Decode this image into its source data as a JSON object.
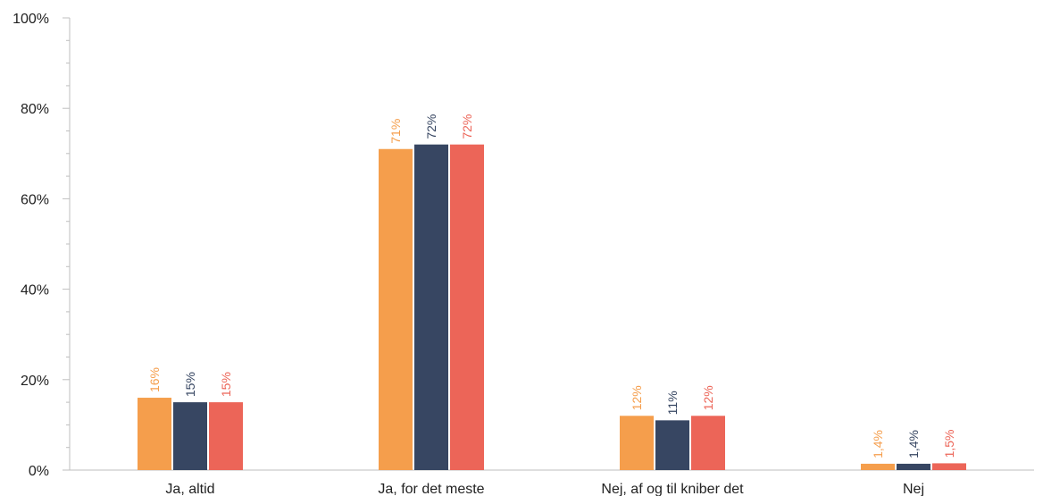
{
  "chart_data": {
    "type": "bar",
    "categories": [
      "Ja, altid",
      "Ja, for det meste",
      "Nej, af og til kniber det",
      "Nej"
    ],
    "series": [
      {
        "values": [
          16,
          71,
          12,
          1.4
        ],
        "labels": [
          "16%",
          "71%",
          "12%",
          "1,4%"
        ],
        "color": "#F59E4C"
      },
      {
        "values": [
          15,
          72,
          11,
          1.4
        ],
        "labels": [
          "15%",
          "72%",
          "11%",
          "1,4%"
        ],
        "color": "#374662"
      },
      {
        "values": [
          15,
          72,
          12,
          1.5
        ],
        "labels": [
          "15%",
          "72%",
          "12%",
          "1,5%"
        ],
        "color": "#EC6558"
      }
    ],
    "ylim": [
      0,
      100
    ],
    "yticks": [
      0,
      20,
      40,
      60,
      80,
      100
    ],
    "ytick_labels": [
      "0%",
      "20%",
      "40%",
      "60%",
      "80%",
      "100%"
    ],
    "title": "",
    "xlabel": "",
    "ylabel": "",
    "grid": false,
    "legend": "none"
  }
}
